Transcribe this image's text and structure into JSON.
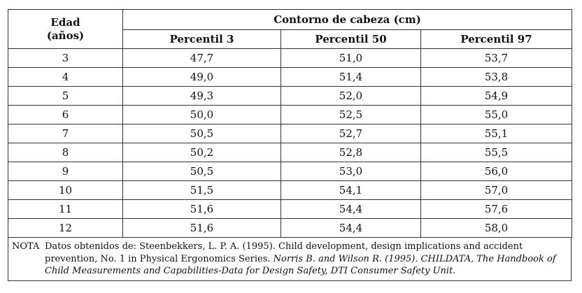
{
  "table": {
    "col_age_line1": "Edad",
    "col_age_line2": "(años)",
    "group_header": "Contorno de cabeza (cm)",
    "sub_headers": [
      "Percentil 3",
      "Percentil 50",
      "Percentil 97"
    ],
    "rows": [
      [
        "3",
        "47,7",
        "51,0",
        "53,7"
      ],
      [
        "4",
        "49,0",
        "51,4",
        "53,8"
      ],
      [
        "5",
        "49,3",
        "52,0",
        "54,9"
      ],
      [
        "6",
        "50,0",
        "52,5",
        "55,0"
      ],
      [
        "7",
        "50,5",
        "52,7",
        "55,1"
      ],
      [
        "8",
        "50,2",
        "52,8",
        "55,5"
      ],
      [
        "9",
        "50,5",
        "53,0",
        "56,0"
      ],
      [
        "10",
        "51,5",
        "54,1",
        "57,0"
      ],
      [
        "11",
        "51,6",
        "54,4",
        "57,6"
      ],
      [
        "12",
        "51,6",
        "54,4",
        "58,0"
      ]
    ]
  },
  "note": {
    "label": "NOTA",
    "text_regular": "Datos obtenidos de: Steenbekkers, L. P. A. (1995). Child development, design implications and accident prevention, No. 1 in Physical Ergonomics Series. ",
    "text_italic": "Norris B. and Wilson R. (1995). CHILDATA, The Handbook of Child Measurements and Capabilities-Data for Design Safety, DTI Consumer Safety Unit."
  }
}
